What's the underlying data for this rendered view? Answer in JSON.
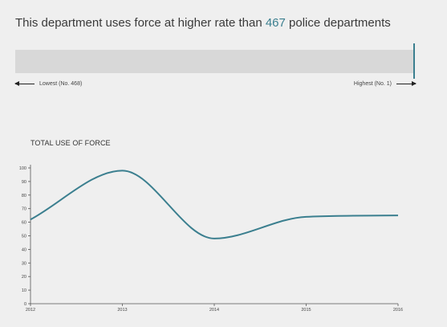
{
  "headline": {
    "prefix": "This department uses force at higher rate than ",
    "rank_value": "467",
    "suffix": " police departments"
  },
  "rank_scale": {
    "lowest_label": "Lowest (No. 468)",
    "highest_label": "Highest (No. 1)",
    "position_fraction": 1.0,
    "marker_color": "#3b7f8f"
  },
  "chart_data": {
    "type": "line",
    "title": "TOTAL USE OF FORCE",
    "xlabel": "",
    "ylabel": "",
    "x": [
      2012,
      2013,
      2014,
      2015,
      2016
    ],
    "xticks": [
      "2012",
      "2013",
      "2014",
      "2015",
      "2016"
    ],
    "yticks": [
      "0",
      "10",
      "20",
      "30",
      "40",
      "50",
      "60",
      "70",
      "80",
      "90",
      "100"
    ],
    "ylim": [
      0,
      100
    ],
    "series": [
      {
        "name": "",
        "values": [
          62,
          98,
          48,
          64,
          65
        ],
        "color": "#3b7f8f"
      }
    ],
    "grid": false,
    "legend": "none"
  }
}
